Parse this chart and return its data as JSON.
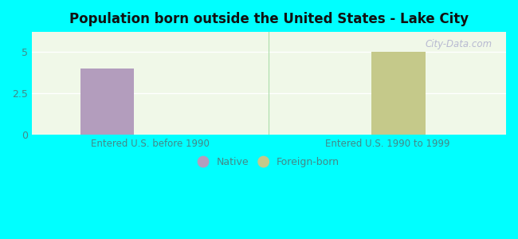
{
  "title": "Population born outside the United States - Lake City",
  "background_color": "#00FFFF",
  "plot_bg_gradient_top": "#f0f8e8",
  "plot_bg_gradient_bottom": "#e0f0d0",
  "categories": [
    "Entered U.S. before 1990",
    "Entered U.S. 1990 to 1999"
  ],
  "native_values": [
    4.0,
    0
  ],
  "foreign_values": [
    0,
    5.0
  ],
  "native_color": "#b39dbd",
  "foreign_color": "#c5c98a",
  "ylim": [
    0,
    6.2
  ],
  "yticks": [
    0,
    2.5,
    5
  ],
  "ytick_labels": [
    "0",
    "2.5",
    "5"
  ],
  "grid_color": "#ffffff",
  "legend_native": "Native",
  "legend_foreign": "Foreign-born",
  "watermark": "City-Data.com",
  "watermark_color": "#aaaacc",
  "bar_width": 0.25,
  "tick_label_color": "#448888"
}
